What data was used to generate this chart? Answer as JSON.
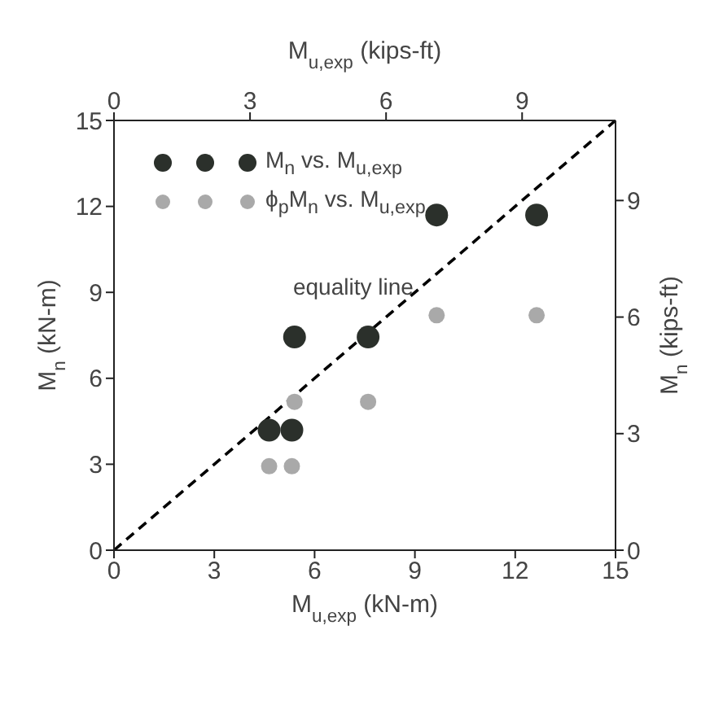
{
  "chart_data": {
    "type": "scatter",
    "xlabel": "M$_{u,exp}$ (kN-m)",
    "ylabel": "M$_{n}$ (kN-m)",
    "x2label": "M$_{u,exp}$ (kips-ft)",
    "y2label": "M$_{n}$ (kips-ft)",
    "xlim": [
      0,
      15
    ],
    "xticks": [
      0,
      3,
      6,
      9,
      12,
      15
    ],
    "ylim": [
      0,
      15
    ],
    "yticks": [
      0,
      3,
      6,
      9,
      12,
      15
    ],
    "x2lim": [
      0,
      11.06
    ],
    "x2ticks": [
      0,
      3,
      6,
      9
    ],
    "y2lim": [
      0,
      11.06
    ],
    "y2ticks": [
      0,
      3,
      6,
      9
    ],
    "marker": "circle",
    "legend": "top left",
    "grid": false,
    "series": [
      {
        "name": "M$_{n}$ vs. M$_{u,exp}$",
        "color": "#2b302b",
        "x": [
          9.65,
          12.64,
          5.4,
          7.6,
          4.64,
          5.32
        ],
        "values": [
          11.7,
          11.7,
          7.44,
          7.44,
          4.19,
          4.19
        ]
      },
      {
        "name": "ϕ$_{p}$M$_{n}$ vs. M$_{u,exp}$",
        "color": "#a9a9a9",
        "x": [
          9.65,
          12.64,
          5.4,
          7.6,
          4.64,
          5.32
        ],
        "values": [
          8.2,
          8.2,
          5.18,
          5.18,
          2.93,
          2.93
        ]
      },
      {
        "type": "line",
        "color": "#000000",
        "line_style": "dashed",
        "marker": "none",
        "x": [
          0,
          15
        ],
        "values": [
          0,
          15
        ]
      }
    ],
    "annotations": [
      {
        "text": "equality line",
        "x": 9.2,
        "y": 9.2
      }
    ]
  }
}
